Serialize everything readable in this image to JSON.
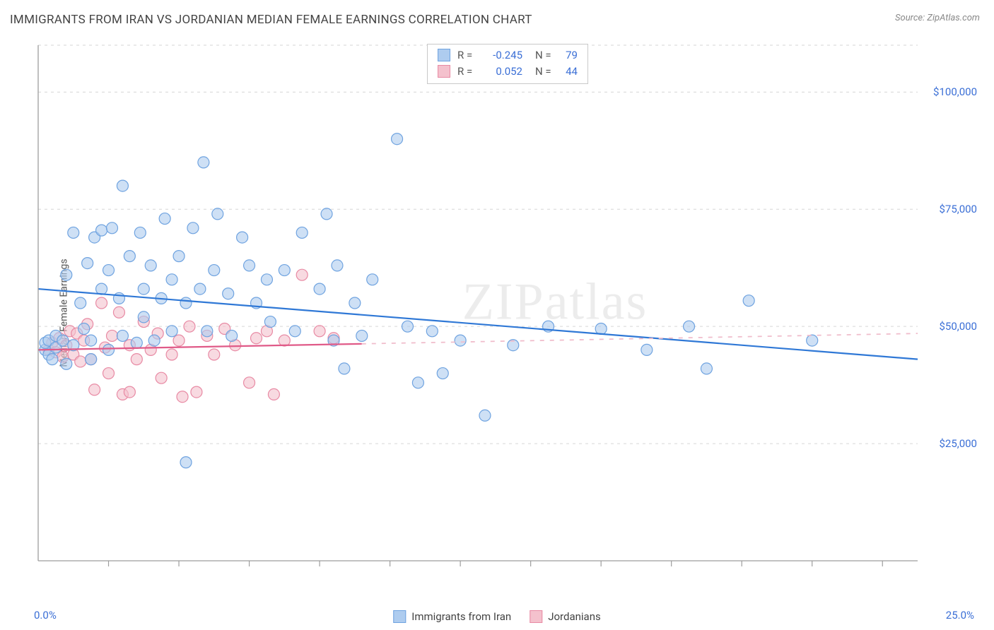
{
  "title": "IMMIGRANTS FROM IRAN VS JORDANIAN MEDIAN FEMALE EARNINGS CORRELATION CHART",
  "source_label": "Source: ZipAtlas.com",
  "watermark": "ZIPatlas",
  "ylabel": "Median Female Earnings",
  "chart": {
    "type": "scatter",
    "xlim": [
      0,
      25
    ],
    "ylim": [
      0,
      110000
    ],
    "x_tick_start": "0.0%",
    "x_tick_end": "25.0%",
    "y_ticks": [
      25000,
      50000,
      75000,
      100000
    ],
    "y_tick_labels": [
      "$25,000",
      "$50,000",
      "$75,000",
      "$100,000"
    ],
    "grid_color": "#d6d6d6",
    "axis_color": "#9d9d9d",
    "tick_color": "#9d9d9d",
    "background_color": "#ffffff",
    "marker_radius": 8,
    "marker_stroke_width": 1.2,
    "x_minor_ticks": [
      2,
      4,
      6,
      8,
      10,
      12,
      14,
      16,
      18,
      20,
      22,
      24
    ],
    "series": [
      {
        "name": "Immigrants from Iran",
        "fill": "#aeccef",
        "stroke": "#6fa3e0",
        "fill_opacity": 0.6,
        "R": "-0.245",
        "N": "79",
        "regression": {
          "y_at_xmin": 58000,
          "y_at_xmax": 43000,
          "color": "#2f78d6",
          "width": 2.2,
          "dash": null
        },
        "points": [
          [
            0.2,
            45000
          ],
          [
            0.2,
            46500
          ],
          [
            0.3,
            44000
          ],
          [
            0.3,
            47000
          ],
          [
            0.4,
            43000
          ],
          [
            0.5,
            45500
          ],
          [
            0.5,
            48000
          ],
          [
            0.7,
            47000
          ],
          [
            0.8,
            42000
          ],
          [
            0.8,
            61000
          ],
          [
            1.0,
            46000
          ],
          [
            1.0,
            70000
          ],
          [
            1.2,
            55000
          ],
          [
            1.3,
            49500
          ],
          [
            1.4,
            63500
          ],
          [
            1.5,
            47000
          ],
          [
            1.5,
            43000
          ],
          [
            1.6,
            69000
          ],
          [
            1.8,
            58000
          ],
          [
            1.8,
            70500
          ],
          [
            2.0,
            45000
          ],
          [
            2.0,
            62000
          ],
          [
            2.1,
            71000
          ],
          [
            2.3,
            56000
          ],
          [
            2.4,
            80000
          ],
          [
            2.4,
            48000
          ],
          [
            2.6,
            65000
          ],
          [
            2.8,
            46500
          ],
          [
            2.9,
            70000
          ],
          [
            3.0,
            58000
          ],
          [
            3.0,
            52000
          ],
          [
            3.2,
            63000
          ],
          [
            3.3,
            47000
          ],
          [
            3.5,
            56000
          ],
          [
            3.6,
            73000
          ],
          [
            3.8,
            60000
          ],
          [
            3.8,
            49000
          ],
          [
            4.0,
            65000
          ],
          [
            4.2,
            55000
          ],
          [
            4.2,
            21000
          ],
          [
            4.4,
            71000
          ],
          [
            4.6,
            58000
          ],
          [
            4.7,
            85000
          ],
          [
            4.8,
            49000
          ],
          [
            5.0,
            62000
          ],
          [
            5.1,
            74000
          ],
          [
            5.4,
            57000
          ],
          [
            5.5,
            48000
          ],
          [
            5.8,
            69000
          ],
          [
            6.0,
            63000
          ],
          [
            6.2,
            55000
          ],
          [
            6.5,
            60000
          ],
          [
            6.6,
            51000
          ],
          [
            7.0,
            62000
          ],
          [
            7.3,
            49000
          ],
          [
            7.5,
            70000
          ],
          [
            8.0,
            58000
          ],
          [
            8.2,
            74000
          ],
          [
            8.4,
            47000
          ],
          [
            8.5,
            63000
          ],
          [
            8.7,
            41000
          ],
          [
            9.0,
            55000
          ],
          [
            9.2,
            48000
          ],
          [
            9.5,
            60000
          ],
          [
            10.2,
            90000
          ],
          [
            10.5,
            50000
          ],
          [
            10.8,
            38000
          ],
          [
            11.2,
            49000
          ],
          [
            11.5,
            40000
          ],
          [
            12.0,
            47000
          ],
          [
            12.7,
            31000
          ],
          [
            13.5,
            46000
          ],
          [
            14.5,
            50000
          ],
          [
            16.0,
            49500
          ],
          [
            17.3,
            45000
          ],
          [
            18.5,
            50000
          ],
          [
            19.0,
            41000
          ],
          [
            20.2,
            55500
          ],
          [
            22.0,
            47000
          ]
        ]
      },
      {
        "name": "Jordanians",
        "fill": "#f4c1cd",
        "stroke": "#e88aa4",
        "fill_opacity": 0.6,
        "R": "0.052",
        "N": "44",
        "regression": {
          "y_at_xmin": 45000,
          "y_at_xmax": 48500,
          "color": "#e05a88",
          "width": 2.2,
          "solid_until_x": 9.2,
          "dash_after": "6 8",
          "dash_color": "#f0bccb"
        },
        "points": [
          [
            0.3,
            45000
          ],
          [
            0.4,
            46500
          ],
          [
            0.5,
            44500
          ],
          [
            0.6,
            47500
          ],
          [
            0.7,
            43500
          ],
          [
            0.8,
            46000
          ],
          [
            0.9,
            49000
          ],
          [
            1.0,
            44000
          ],
          [
            1.1,
            48500
          ],
          [
            1.2,
            42500
          ],
          [
            1.3,
            47000
          ],
          [
            1.4,
            50500
          ],
          [
            1.5,
            43000
          ],
          [
            1.6,
            36500
          ],
          [
            1.8,
            55000
          ],
          [
            1.9,
            45500
          ],
          [
            2.0,
            40000
          ],
          [
            2.1,
            48000
          ],
          [
            2.3,
            53000
          ],
          [
            2.4,
            35500
          ],
          [
            2.6,
            46000
          ],
          [
            2.6,
            36000
          ],
          [
            2.8,
            43000
          ],
          [
            3.0,
            51000
          ],
          [
            3.2,
            45000
          ],
          [
            3.4,
            48500
          ],
          [
            3.5,
            39000
          ],
          [
            3.8,
            44000
          ],
          [
            4.0,
            47000
          ],
          [
            4.1,
            35000
          ],
          [
            4.3,
            50000
          ],
          [
            4.5,
            36000
          ],
          [
            4.8,
            48000
          ],
          [
            5.0,
            44000
          ],
          [
            5.3,
            49500
          ],
          [
            5.6,
            46000
          ],
          [
            6.0,
            38000
          ],
          [
            6.2,
            47500
          ],
          [
            6.5,
            49000
          ],
          [
            6.7,
            35500
          ],
          [
            7.0,
            47000
          ],
          [
            7.5,
            61000
          ],
          [
            8.0,
            49000
          ],
          [
            8.4,
            47500
          ]
        ]
      }
    ]
  },
  "legend": {
    "items": [
      {
        "label": "Immigrants from Iran",
        "fill": "#aeccef",
        "stroke": "#6fa3e0"
      },
      {
        "label": "Jordanians",
        "fill": "#f4c1cd",
        "stroke": "#e88aa4"
      }
    ]
  }
}
